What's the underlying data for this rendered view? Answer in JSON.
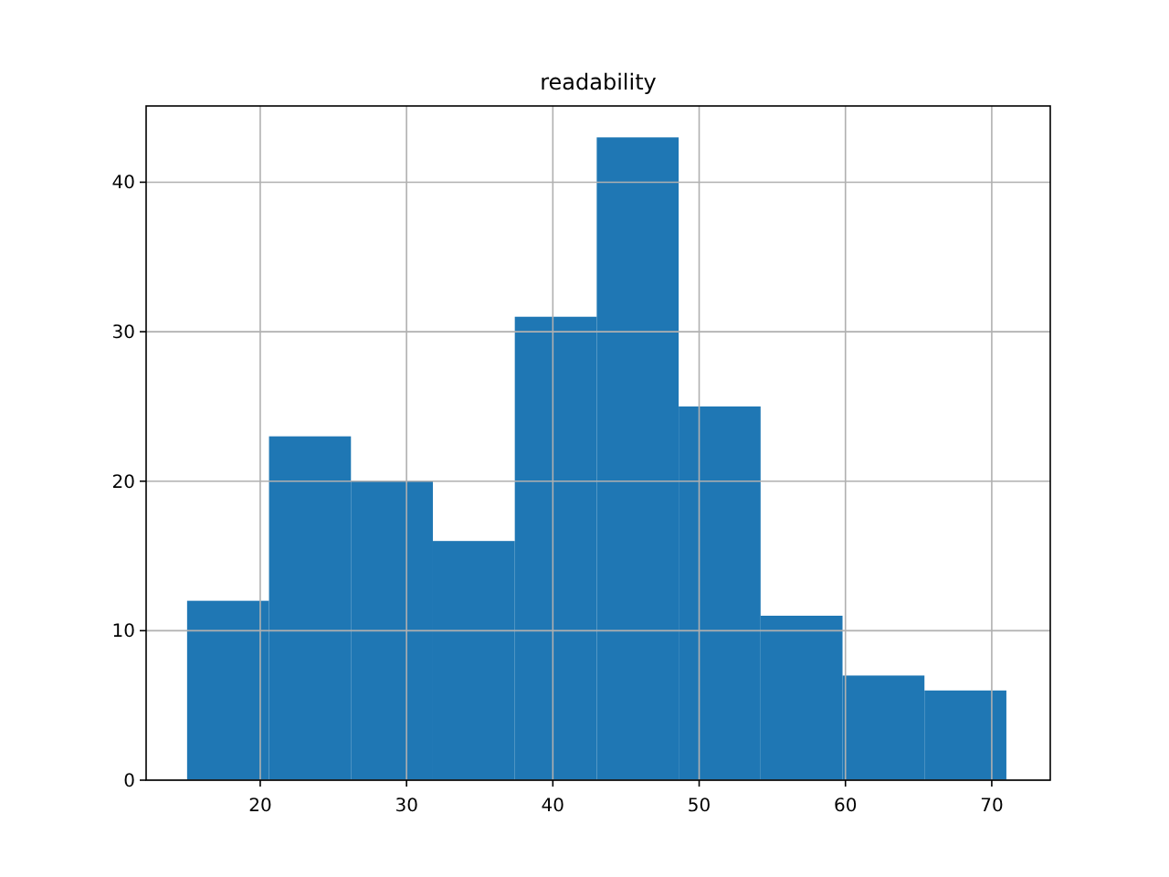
{
  "chart_data": {
    "type": "histogram",
    "title": "readability",
    "bins": [
      15,
      20.6,
      26.2,
      31.8,
      37.4,
      43,
      48.6,
      54.2,
      59.8,
      65.4,
      71
    ],
    "values": [
      12,
      23,
      20,
      16,
      31,
      43,
      25,
      11,
      7,
      6
    ],
    "color": "#1f77b4",
    "xlim": [
      12.2,
      74
    ],
    "xticks": [
      20,
      30,
      40,
      50,
      60,
      70
    ],
    "ylim": [
      0,
      45.1
    ],
    "yticks": [
      0,
      10,
      20,
      30,
      40
    ],
    "grid": true
  }
}
